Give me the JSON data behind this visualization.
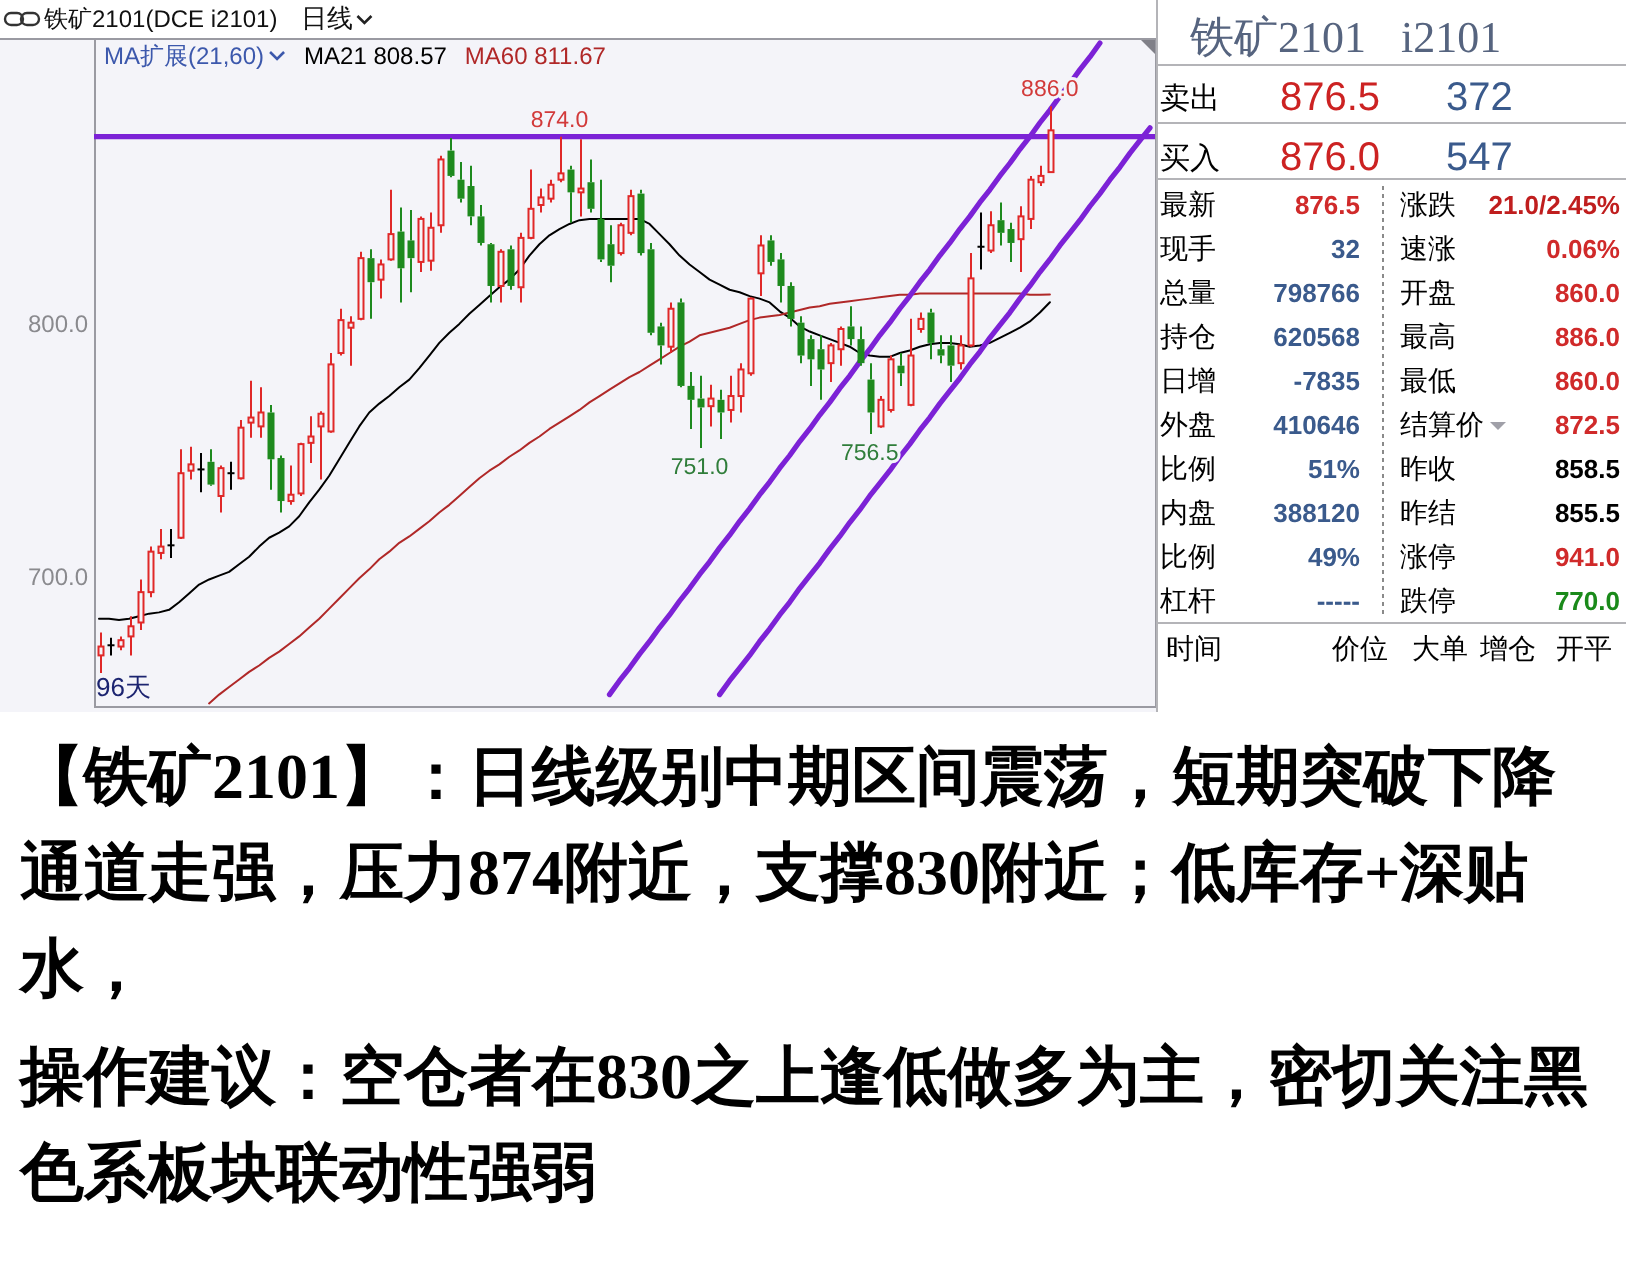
{
  "chart_data": [
    {
      "type": "candlestick",
      "title": "铁矿2101(DCE i2101)",
      "subtitle": "日线",
      "legend_title": "MA扩展(21,60)",
      "legend": "top left",
      "categories": [
        null,
        null,
        null,
        null,
        null,
        null,
        null,
        null,
        null,
        null,
        null,
        null,
        null,
        null,
        null,
        null,
        null,
        null,
        null,
        null,
        null,
        null,
        null,
        null,
        null,
        null,
        null,
        null,
        null,
        null,
        null,
        null,
        null,
        null,
        null,
        null,
        null,
        null,
        null,
        null,
        null,
        null,
        null,
        null,
        null,
        null,
        null,
        null,
        null,
        null,
        null,
        null,
        null,
        null,
        null,
        null,
        null,
        null,
        null,
        null,
        null,
        null,
        null,
        null,
        null,
        null,
        null,
        null,
        null,
        null,
        null,
        null,
        null,
        null,
        null,
        null,
        null,
        null,
        null,
        null,
        null,
        null,
        null,
        null,
        null,
        null,
        null,
        null,
        null,
        null,
        null,
        null,
        null,
        null,
        null,
        null,
        null,
        null,
        null,
        null,
        null,
        null,
        null,
        null,
        null,
        null
      ],
      "ohlc": [
        [
          669,
          678,
          662,
          672.5
        ],
        [
          673,
          676,
          669,
          673
        ],
        [
          672.5,
          676.5,
          671,
          675
        ],
        [
          676.5,
          684.5,
          669,
          680.5
        ],
        [
          682,
          699,
          679,
          694
        ],
        [
          694,
          712,
          692,
          710
        ],
        [
          709.5,
          719,
          707,
          712
        ],
        [
          712.5,
          719,
          707.5,
          712.5
        ],
        [
          715.5,
          750.5,
          715,
          741
        ],
        [
          742,
          751.5,
          738.5,
          744.5
        ],
        [
          742.5,
          749,
          733.5,
          742.5
        ],
        [
          745.5,
          750.5,
          736,
          736.5
        ],
        [
          732,
          744,
          725.5,
          743
        ],
        [
          741,
          745.5,
          734.5,
          741
        ],
        [
          739,
          762,
          738.5,
          759
        ],
        [
          761,
          777.5,
          755,
          763
        ],
        [
          759.5,
          775,
          755,
          765
        ],
        [
          765,
          768,
          734.5,
          746.5
        ],
        [
          747,
          748,
          725.5,
          730
        ],
        [
          730,
          744,
          728.5,
          732.5
        ],
        [
          733,
          753,
          732,
          752.5
        ],
        [
          753,
          763.5,
          745,
          755.5
        ],
        [
          759.5,
          765.5,
          738.5,
          764.5
        ],
        [
          757.5,
          788.5,
          757,
          784
        ],
        [
          788.5,
          806,
          787.5,
          801.5
        ],
        [
          798.5,
          803,
          783.5,
          800.5
        ],
        [
          802,
          828.5,
          801.5,
          826
        ],
        [
          826,
          829.5,
          802,
          816.5
        ],
        [
          817.5,
          825.5,
          810,
          823.5
        ],
        [
          825.5,
          853,
          825,
          835.5
        ],
        [
          836.5,
          846,
          808.5,
          822
        ],
        [
          833,
          845,
          812.5,
          826
        ],
        [
          824.5,
          842.5,
          820.5,
          841.5
        ],
        [
          825,
          844,
          821,
          838
        ],
        [
          839,
          866.5,
          836,
          865
        ],
        [
          868.5,
          873.5,
          858,
          858.5
        ],
        [
          857,
          864,
          848,
          849.5
        ],
        [
          854.5,
          862.5,
          839,
          842.5
        ],
        [
          842.5,
          847,
          831,
          832
        ],
        [
          831.5,
          832,
          808.5,
          815
        ],
        [
          815,
          829.5,
          808.5,
          828.5
        ],
        [
          829.5,
          831,
          813.5,
          815
        ],
        [
          814.5,
          836,
          808.5,
          834
        ],
        [
          834,
          861,
          833.5,
          845.5
        ],
        [
          847,
          853.5,
          844,
          850
        ],
        [
          849.5,
          857,
          848,
          855
        ],
        [
          857,
          874,
          856,
          859.5
        ],
        [
          861,
          862.5,
          840,
          852
        ],
        [
          852,
          873,
          842.5,
          853.5
        ],
        [
          856,
          865,
          844,
          845.5
        ],
        [
          841.5,
          857,
          824.5,
          825.5
        ],
        [
          831.5,
          839,
          816.5,
          823
        ],
        [
          828,
          840,
          827,
          839
        ],
        [
          836,
          853,
          835,
          850.5
        ],
        [
          851.5,
          853,
          827,
          828
        ],
        [
          829.5,
          832,
          795.5,
          796.5
        ],
        [
          799,
          800.5,
          784,
          791.5
        ],
        [
          791,
          808.5,
          788.5,
          806
        ],
        [
          808.5,
          810,
          775,
          775.5
        ],
        [
          775.5,
          781,
          758.5,
          770
        ],
        [
          770.5,
          779.5,
          751,
          767
        ],
        [
          767.5,
          776,
          759.5,
          770.5
        ],
        [
          770,
          774,
          754.5,
          765
        ],
        [
          766,
          779.5,
          761,
          771.5
        ],
        [
          771.5,
          784.5,
          765,
          782
        ],
        [
          780.5,
          810.5,
          779.5,
          810
        ],
        [
          820,
          835,
          811,
          831
        ],
        [
          833,
          835,
          823,
          824.5
        ],
        [
          825.5,
          828,
          808.5,
          815
        ],
        [
          815,
          816.5,
          799,
          802
        ],
        [
          800.5,
          803,
          784.5,
          787.5
        ],
        [
          794,
          795.5,
          775.5,
          786
        ],
        [
          790,
          795.5,
          770,
          782
        ],
        [
          784.5,
          792.5,
          777,
          791.5
        ],
        [
          790,
          799,
          783.5,
          798
        ],
        [
          799,
          807,
          791.5,
          794
        ],
        [
          794,
          799,
          783.5,
          784.5
        ],
        [
          778,
          784.5,
          756.5,
          765
        ],
        [
          759.5,
          771.5,
          759,
          770
        ],
        [
          766,
          787.5,
          765,
          786
        ],
        [
          783.5,
          788.5,
          775.5,
          780.5
        ],
        [
          768,
          802,
          767.5,
          787.5
        ],
        [
          798,
          804.5,
          796.5,
          802
        ],
        [
          804.5,
          806,
          786,
          792.5
        ],
        [
          790,
          795.5,
          784.5,
          787.5
        ],
        [
          791.5,
          795.5,
          777,
          783.5
        ],
        [
          784.5,
          795.5,
          782,
          791.5
        ],
        [
          791.5,
          828,
          791,
          818
        ],
        [
          830.5,
          844,
          821.5,
          830.5
        ],
        [
          829,
          844.5,
          828,
          839
        ],
        [
          841,
          848,
          831,
          836
        ],
        [
          837.5,
          840,
          824.5,
          832
        ],
        [
          833.5,
          846.5,
          820.5,
          842.5
        ],
        [
          841.5,
          858.5,
          837.5,
          857
        ],
        [
          856,
          862.5,
          854.5,
          858.5
        ],
        [
          860,
          886,
          860,
          876.5
        ],
        null,
        null,
        null,
        null,
        null,
        null,
        null,
        null,
        null,
        null
      ],
      "ylim": [
        649,
        913
      ],
      "yticks": [
        {
          "value": 800,
          "label": "800.0"
        },
        {
          "value": 700,
          "label": "700.0"
        }
      ],
      "tick_labels": "y",
      "series": [
        {
          "name": "MA21 808.57",
          "type": "line",
          "color": "#000000",
          "values": [
            683.5,
            683.5,
            683,
            683.5,
            684.5,
            685.5,
            686,
            687,
            690,
            693.5,
            697,
            699,
            700.5,
            702,
            705,
            708,
            712,
            715.5,
            717.5,
            720,
            724,
            729.5,
            734.5,
            740,
            746.5,
            753,
            759.5,
            765,
            768.5,
            771.5,
            775,
            778,
            782.5,
            787.5,
            792.5,
            796.5,
            800,
            804,
            807.5,
            811,
            814.5,
            817.5,
            821.5,
            827,
            831.5,
            835,
            837.5,
            839.5,
            841,
            841.5,
            841.5,
            841.5,
            841.5,
            841.5,
            841.5,
            839.5,
            835.5,
            831.5,
            827,
            823.5,
            820.5,
            817.5,
            815.5,
            813.5,
            812.5,
            811,
            810,
            808.5,
            805,
            802.5,
            799,
            797,
            795.5,
            794,
            792.5,
            791,
            788.5,
            787.5,
            787,
            787,
            788.5,
            789.5,
            791,
            792,
            792.5,
            792.5,
            792,
            791,
            791.5,
            792.5,
            794.5,
            796.5,
            798.5,
            801,
            804.5,
            808.57,
            null,
            null,
            null,
            null,
            null,
            null,
            null,
            null,
            null,
            null
          ]
        },
        {
          "name": "MA60 811.67",
          "type": "line",
          "color": "#b02828",
          "values": [
            null,
            null,
            null,
            null,
            null,
            null,
            null,
            null,
            null,
            null,
            null,
            650,
            653.5,
            656.5,
            659.5,
            662.5,
            665,
            668,
            670.5,
            673.5,
            676.5,
            680,
            683.5,
            687.5,
            691.5,
            695.5,
            699.5,
            703,
            707,
            710,
            713.5,
            716,
            719,
            722,
            725.5,
            728.5,
            732,
            735.5,
            739,
            742,
            744.5,
            747.5,
            750,
            753,
            755.5,
            758.5,
            761,
            763.5,
            766,
            769,
            771.5,
            774,
            776.5,
            779,
            781,
            783.5,
            786,
            788.5,
            791,
            793,
            795.5,
            796.5,
            797.5,
            798.5,
            800,
            801.5,
            802.5,
            803,
            803.5,
            804.5,
            805.5,
            806.5,
            807,
            808,
            808.5,
            809,
            809.5,
            810,
            810.5,
            811,
            811.5,
            811.5,
            812,
            812,
            812,
            812,
            812,
            812,
            812,
            812,
            812,
            812,
            812,
            811.5,
            811.5,
            811.67,
            null,
            null,
            null,
            null,
            null,
            null,
            null,
            null,
            null,
            null
          ]
        },
        {
          "type": "line",
          "color": "#7c22d6",
          "values": [
            null,
            null,
            null,
            null,
            null,
            null,
            null,
            null,
            null,
            null,
            null,
            null,
            null,
            null,
            null,
            null,
            null,
            null,
            null,
            null,
            null,
            null,
            null,
            null,
            null,
            null,
            null,
            null,
            null,
            null,
            null,
            null,
            null,
            null,
            null,
            null,
            null,
            null,
            null,
            null,
            null,
            null,
            null,
            null,
            null,
            null,
            null,
            null,
            null,
            null,
            null,
            653.5,
            659,
            664,
            669.5,
            674.5,
            680,
            685,
            690.5,
            695.5,
            701,
            706,
            711.5,
            716.5,
            722,
            727,
            732.5,
            737.5,
            743,
            748,
            753.5,
            758.5,
            764,
            769,
            774.5,
            779.5,
            785,
            790,
            795.5,
            800.5,
            806,
            811,
            816.5,
            821.5,
            827,
            832,
            837.5,
            842.5,
            848,
            853,
            858.5,
            863.5,
            869,
            874,
            879.5,
            884.5,
            890,
            895,
            900.5,
            905.5,
            911,
            null,
            null,
            null,
            null,
            null
          ]
        },
        {
          "type": "line",
          "color": "#7c22d6",
          "values": [
            null,
            null,
            null,
            null,
            null,
            null,
            null,
            null,
            null,
            null,
            null,
            null,
            null,
            null,
            null,
            null,
            null,
            null,
            null,
            null,
            null,
            null,
            null,
            null,
            null,
            null,
            null,
            null,
            null,
            null,
            null,
            null,
            null,
            null,
            null,
            null,
            null,
            null,
            null,
            null,
            null,
            null,
            null,
            null,
            null,
            null,
            null,
            null,
            null,
            null,
            null,
            null,
            null,
            null,
            null,
            null,
            null,
            null,
            null,
            null,
            null,
            null,
            653.5,
            659,
            664,
            669,
            674.5,
            679.5,
            685,
            690,
            695.5,
            700.5,
            705.5,
            711,
            716,
            721.5,
            726.5,
            732,
            737,
            742,
            747.5,
            752.5,
            758,
            763,
            768.5,
            773.5,
            778.5,
            784,
            789,
            794.5,
            799.5,
            804.5,
            810,
            815,
            820.5,
            825.5,
            831,
            836,
            841,
            846.5,
            851.5,
            857,
            862,
            867.5,
            872.5,
            877.5
          ]
        }
      ],
      "ref_lines": [
        {
          "axis": "y",
          "value": 874,
          "color": "#7c22d6"
        }
      ],
      "annotations": [
        "96天",
        {
          "text": "874.0",
          "y": 874
        },
        {
          "text": "751.0",
          "y": 751
        },
        {
          "text": "756.5",
          "y": 756.5
        },
        {
          "text": "886.0",
          "y": 886
        },
        "【铁矿2101】：日线级别中期区间震荡，短期突破下降通道走强，压力874附近，支撑830附近；低库存+深贴水，",
        "操作建议：空仓者在830之上逢低做多为主，密切关注黑色系板块联动性强弱"
      ]
    },
    {
      "type": "other",
      "title": "铁矿2101 i2101",
      "annotations": [
        "卖出",
        "876.5",
        "372",
        "买入",
        "876.0",
        "547",
        "最新",
        "876.5",
        "涨跌",
        "21.0/2.45%",
        "现手",
        "32",
        "速涨",
        "0.06%",
        "总量",
        "798766",
        "开盘",
        "860.0",
        "持仓",
        "620568",
        "最高",
        "886.0",
        "日增",
        "-7835",
        "最低",
        "860.0",
        "外盘",
        "410646",
        "结算价",
        "872.5",
        "比例",
        "51%",
        "昨收",
        "858.5",
        "内盘",
        "388120",
        "昨结",
        "855.5",
        "比例",
        "49%",
        "涨停",
        "941.0",
        "杠杆",
        "-----",
        "跌停",
        "770.0",
        "时间",
        "价位",
        "大单",
        "增仓",
        "开平"
      ]
    }
  ]
}
